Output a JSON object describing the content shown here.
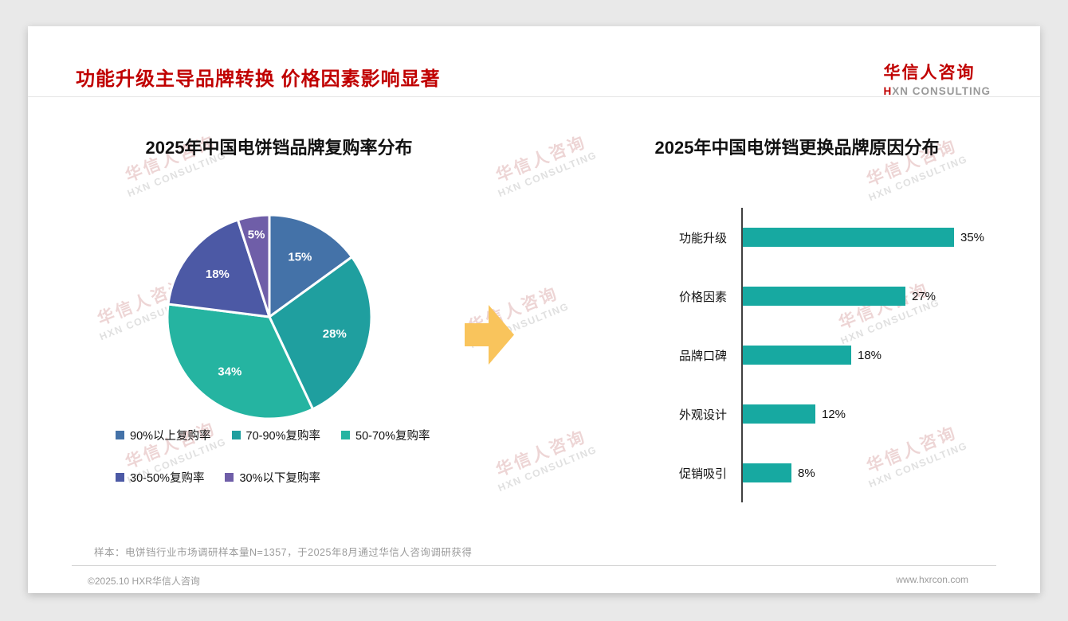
{
  "page": {
    "title": "功能升级主导品牌转换 价格因素影响显著",
    "logo": {
      "name": "华信人咨询",
      "sub": "HXN CONSULTING"
    },
    "watermark": {
      "line1": "华信人咨询",
      "line2": "HXN CONSULTING"
    },
    "arrow_color": "#f9c45c",
    "footnote": "样本：电饼铛行业市场调研样本量N=1357，于2025年8月通过华信人咨询调研获得",
    "footer": {
      "copyright": "©2025.10 HXR华信人咨询",
      "website": "www.hxrcon.com"
    }
  },
  "chart_data": [
    {
      "type": "pie",
      "title": "2025年中国电饼铛品牌复购率分布",
      "labels": [
        "90%以上复购率",
        "70-90%复购率",
        "50-70%复购率",
        "30-50%复购率",
        "30%以下复购率"
      ],
      "values": [
        15,
        28,
        34,
        18,
        5
      ],
      "unit": "%",
      "data_labels": [
        "15%",
        "28%",
        "34%",
        "18%",
        "5%"
      ],
      "colors": [
        "#4472a8",
        "#1f9f9f",
        "#25b4a1",
        "#4c59a5",
        "#6f5ea8"
      ],
      "legend_position": "bottom",
      "start_angle_deg": -90,
      "direction": "clockwise"
    },
    {
      "type": "bar",
      "orientation": "horizontal",
      "title": "2025年中国电饼铛更换品牌原因分布",
      "categories": [
        "功能升级",
        "价格因素",
        "品牌口碑",
        "外观设计",
        "促销吸引"
      ],
      "values": [
        35,
        27,
        18,
        12,
        8
      ],
      "unit": "%",
      "data_labels": [
        "35%",
        "27%",
        "18%",
        "12%",
        "8%"
      ],
      "bar_color": "#17a9a1",
      "axis_color": "#404040",
      "xlim": [
        0,
        40
      ],
      "grid": false,
      "legend_position": "none"
    }
  ]
}
